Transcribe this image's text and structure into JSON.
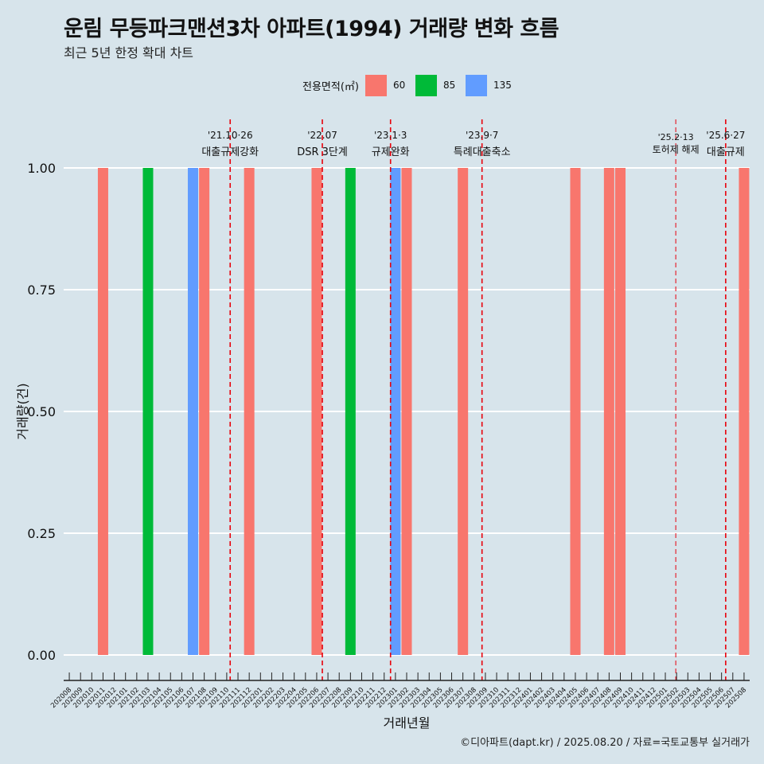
{
  "title": "운림 무등파크맨션3차 아파트(1994) 거래량 변화 흐름",
  "subtitle": "최근 5년 한정 확대 차트",
  "legend_title": "전용면적(㎡)",
  "caption": "©디아파트(dapt.kr) / 2025.08.20 / 자료=국토교통부 실거래가",
  "colors": {
    "60": "#f8766d",
    "85": "#00ba38",
    "135": "#619cff",
    "background": "#d7e4eb",
    "grid": "#ffffff",
    "vline": "#e8000b"
  },
  "chart_data": {
    "type": "bar",
    "xlabel": "거래년월",
    "ylabel": "거래량(건)",
    "ylim": [
      0,
      1
    ],
    "yticks": [
      "0.00",
      "0.25",
      "0.50",
      "0.75",
      "1.00"
    ],
    "grid": true,
    "legend_position": "top",
    "categories": [
      "202008",
      "202009",
      "202010",
      "202011",
      "202012",
      "202101",
      "202102",
      "202103",
      "202104",
      "202105",
      "202106",
      "202107",
      "202108",
      "202109",
      "202110",
      "202111",
      "202112",
      "202201",
      "202202",
      "202203",
      "202204",
      "202205",
      "202206",
      "202207",
      "202208",
      "202209",
      "202210",
      "202211",
      "202212",
      "202301",
      "202302",
      "202303",
      "202304",
      "202305",
      "202306",
      "202307",
      "202308",
      "202309",
      "202310",
      "202311",
      "202312",
      "202401",
      "202402",
      "202403",
      "202404",
      "202405",
      "202406",
      "202407",
      "202408",
      "202409",
      "202410",
      "202411",
      "202412",
      "202501",
      "202502",
      "202503",
      "202504",
      "202505",
      "202506",
      "202507",
      "202508"
    ],
    "series": [
      {
        "name": "60",
        "values": {
          "202011": 1,
          "202108": 1,
          "202112": 1,
          "202206": 1,
          "202302": 1,
          "202307": 1,
          "202405": 1,
          "202408": 1,
          "202409": 1,
          "202508": 1
        }
      },
      {
        "name": "85",
        "values": {
          "202103": 1,
          "202209": 1
        }
      },
      {
        "name": "135",
        "values": {
          "202107": 1,
          "202301": 1
        }
      }
    ],
    "annotations": [
      {
        "date": "2021-10-26",
        "line1": "'21.10·26",
        "line2": "대출규제강화"
      },
      {
        "date": "2022-07-01",
        "line1": "'22.07",
        "line2": "DSR 3단계"
      },
      {
        "date": "2023-01-03",
        "line1": "'23.1·3",
        "line2": "규제완화"
      },
      {
        "date": "2023-09-07",
        "line1": "'23.9·7",
        "line2": "특례대출축소"
      },
      {
        "date": "2025-02-13",
        "line1": "'25.2·13",
        "line2": "토허제 해제"
      },
      {
        "date": "2025-06-27",
        "line1": "'25.6·27",
        "line2": "대출규제"
      }
    ]
  }
}
